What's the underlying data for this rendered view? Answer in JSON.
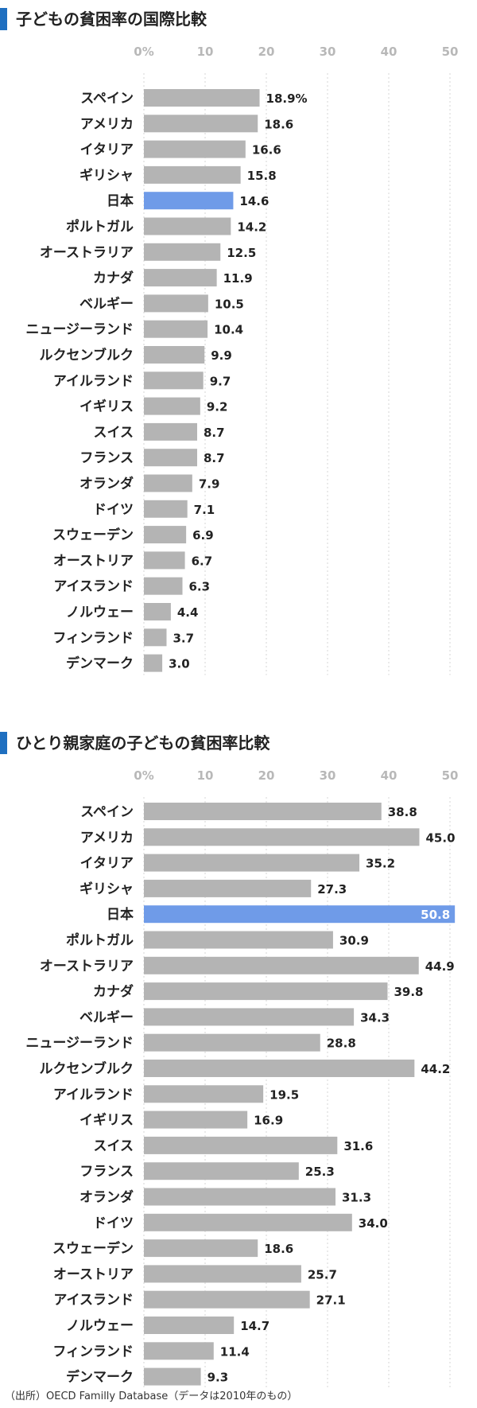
{
  "accent_color": "#6f9be8",
  "bar_color": "#b4b4b4",
  "title_marker_color": "#1f6fc0",
  "footnote": "（出所）OECD Familly Database（データは2010年のもの）",
  "chart_data": [
    {
      "type": "bar",
      "orientation": "horizontal",
      "title": "子どもの貧困率の国際比較",
      "categories": [
        "スペイン",
        "アメリカ",
        "イタリア",
        "ギリシャ",
        "日本",
        "ポルトガル",
        "オーストラリア",
        "カナダ",
        "ベルギー",
        "ニュージーランド",
        "ルクセンブルク",
        "アイルランド",
        "イギリス",
        "スイス",
        "フランス",
        "オランダ",
        "ドイツ",
        "スウェーデン",
        "オーストリア",
        "アイスランド",
        "ノルウェー",
        "フィンランド",
        "デンマーク"
      ],
      "values": [
        18.9,
        18.6,
        16.6,
        15.8,
        14.6,
        14.2,
        12.5,
        11.9,
        10.5,
        10.4,
        9.9,
        9.7,
        9.2,
        8.7,
        8.7,
        7.9,
        7.1,
        6.9,
        6.7,
        6.3,
        4.4,
        3.7,
        3.0
      ],
      "value_labels": [
        "18.9%",
        "18.6",
        "16.6",
        "15.8",
        "14.6",
        "14.2",
        "12.5",
        "11.9",
        "10.5",
        "10.4",
        "9.9",
        "9.7",
        "9.2",
        "8.7",
        "8.7",
        "7.9",
        "7.1",
        "6.9",
        "6.7",
        "6.3",
        "4.4",
        "3.7",
        "3.0"
      ],
      "highlight": "日本",
      "xticks": [
        "0%",
        "10",
        "20",
        "30",
        "40",
        "50"
      ],
      "xlim": [
        0,
        50
      ],
      "grid": true
    },
    {
      "type": "bar",
      "orientation": "horizontal",
      "title": "ひとり親家庭の子どもの貧困率比較",
      "categories": [
        "スペイン",
        "アメリカ",
        "イタリア",
        "ギリシャ",
        "日本",
        "ポルトガル",
        "オーストラリア",
        "カナダ",
        "ベルギー",
        "ニュージーランド",
        "ルクセンブルク",
        "アイルランド",
        "イギリス",
        "スイス",
        "フランス",
        "オランダ",
        "ドイツ",
        "スウェーデン",
        "オーストリア",
        "アイスランド",
        "ノルウェー",
        "フィンランド",
        "デンマーク"
      ],
      "values": [
        38.8,
        45.0,
        35.2,
        27.3,
        50.8,
        30.9,
        44.9,
        39.8,
        34.3,
        28.8,
        44.2,
        19.5,
        16.9,
        31.6,
        25.3,
        31.3,
        34.0,
        18.6,
        25.7,
        27.1,
        14.7,
        11.4,
        9.3
      ],
      "value_labels": [
        "38.8",
        "45.0",
        "35.2",
        "27.3",
        "50.8",
        "30.9",
        "44.9",
        "39.8",
        "34.3",
        "28.8",
        "44.2",
        "19.5",
        "16.9",
        "31.6",
        "25.3",
        "31.3",
        "34.0",
        "18.6",
        "25.7",
        "27.1",
        "14.7",
        "11.4",
        "9.3"
      ],
      "highlight": "日本",
      "xticks": [
        "0%",
        "10",
        "20",
        "30",
        "40",
        "50"
      ],
      "xlim": [
        0,
        50
      ],
      "grid": true
    }
  ]
}
